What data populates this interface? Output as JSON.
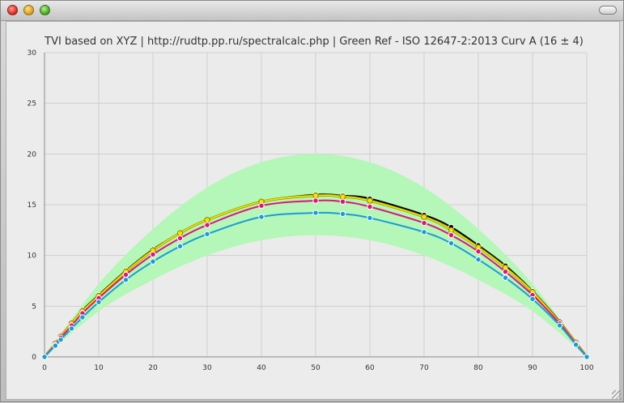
{
  "window": {
    "controls": [
      "close-button",
      "minimize-button",
      "zoom-button"
    ],
    "toolbar_toggle": "toolbar-toggle-button"
  },
  "chart_data": {
    "type": "line",
    "title": "TVI based on XYZ | http://rudtp.pp.ru/spectralcalc.php | Green Ref - ISO 12647-2:2013 Curv A (16 ± 4)",
    "xlabel": "",
    "ylabel": "",
    "xlim": [
      0,
      100
    ],
    "ylim": [
      0,
      30
    ],
    "xticks": [
      0,
      10,
      20,
      30,
      40,
      50,
      60,
      70,
      80,
      90,
      100
    ],
    "yticks": [
      0,
      5,
      10,
      15,
      20,
      25,
      30
    ],
    "grid": true,
    "band": {
      "x": [
        0,
        10,
        20,
        30,
        40,
        50,
        60,
        70,
        80,
        90,
        100
      ],
      "lower": [
        0,
        4.5,
        7.6,
        10.0,
        11.5,
        12.0,
        11.5,
        10.0,
        7.6,
        4.5,
        0
      ],
      "upper": [
        0,
        7.2,
        12.6,
        16.7,
        19.2,
        20.0,
        19.2,
        16.7,
        12.6,
        7.2,
        0
      ],
      "color": "#b4f7b8"
    },
    "series": [
      {
        "color": "#000000",
        "x": [
          0,
          2,
          3,
          5,
          7,
          10,
          15,
          20,
          25,
          30,
          40,
          50,
          55,
          60,
          70,
          75,
          80,
          85,
          90,
          95,
          98,
          100
        ],
        "values": [
          0,
          1.3,
          2.0,
          3.3,
          4.6,
          6.1,
          8.5,
          10.6,
          12.2,
          13.5,
          15.3,
          16.0,
          15.9,
          15.6,
          14.0,
          12.8,
          11.0,
          9.0,
          6.5,
          3.5,
          1.4,
          0
        ]
      },
      {
        "color": "#f2e600",
        "x": [
          0,
          2,
          3,
          5,
          7,
          10,
          15,
          20,
          25,
          30,
          40,
          50,
          55,
          60,
          70,
          75,
          80,
          85,
          90,
          95,
          98,
          100
        ],
        "values": [
          0,
          1.3,
          2.0,
          3.3,
          4.5,
          6.0,
          8.4,
          10.5,
          12.2,
          13.5,
          15.3,
          15.9,
          15.8,
          15.4,
          13.8,
          12.5,
          10.8,
          8.8,
          6.4,
          3.4,
          1.4,
          0
        ]
      },
      {
        "color": "#e0147a",
        "x": [
          0,
          2,
          3,
          5,
          7,
          10,
          15,
          20,
          25,
          30,
          40,
          50,
          55,
          60,
          70,
          75,
          80,
          85,
          90,
          95,
          98,
          100
        ],
        "values": [
          0,
          1.2,
          1.9,
          3.1,
          4.3,
          5.8,
          8.1,
          10.1,
          11.7,
          13.0,
          14.9,
          15.4,
          15.3,
          14.8,
          13.2,
          12.0,
          10.4,
          8.4,
          6.1,
          3.3,
          1.3,
          0
        ]
      },
      {
        "color": "#1a9bd6",
        "x": [
          0,
          2,
          3,
          5,
          7,
          10,
          15,
          20,
          25,
          30,
          40,
          50,
          55,
          60,
          70,
          75,
          80,
          85,
          90,
          95,
          98,
          100
        ],
        "values": [
          0,
          1.1,
          1.7,
          2.8,
          3.9,
          5.4,
          7.6,
          9.4,
          10.9,
          12.1,
          13.8,
          14.2,
          14.1,
          13.7,
          12.3,
          11.2,
          9.6,
          7.8,
          5.7,
          3.1,
          1.2,
          0
        ]
      }
    ]
  }
}
